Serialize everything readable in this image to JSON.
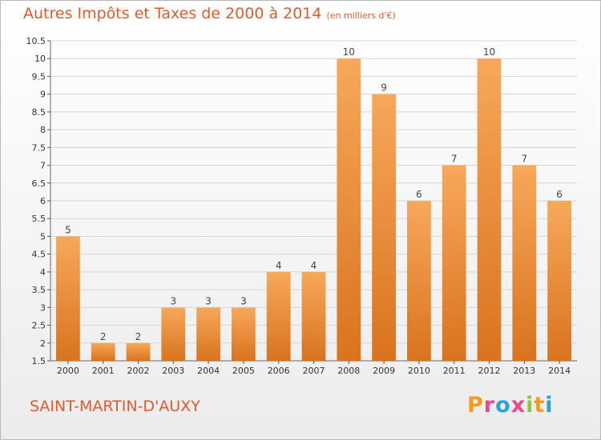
{
  "header": {
    "title": "Autres Impôts et Taxes de 2000 à 2014",
    "subtitle": "(en milliers d'€)"
  },
  "footer": {
    "city": "SAINT-MARTIN-D'AUXY",
    "logo_letters": [
      "P",
      "r",
      "o",
      "x",
      "i",
      "t",
      "i"
    ],
    "logo_colors": [
      "#f39a1f",
      "#e84b8a",
      "#2aa3db",
      "#e84b8a",
      "#8cc63f",
      "#f39a1f",
      "#2aa3db"
    ]
  },
  "colors": {
    "bar_light": "#f7a85a",
    "bar_dark": "#d9731e",
    "accent_text": "#e05a2a"
  },
  "chart_data": {
    "type": "bar",
    "title": "Autres Impôts et Taxes de 2000 à 2014",
    "subtitle": "(en milliers d'€)",
    "categories": [
      "2000",
      "2001",
      "2002",
      "2003",
      "2004",
      "2005",
      "2006",
      "2007",
      "2008",
      "2009",
      "2010",
      "2011",
      "2012",
      "2013",
      "2014"
    ],
    "values": [
      5,
      2,
      2,
      3,
      3,
      3,
      4,
      4,
      10,
      9,
      6,
      7,
      10,
      7,
      6
    ],
    "data_labels": [
      "5",
      "2",
      "2",
      "3",
      "3",
      "3",
      "4",
      "4",
      "10",
      "9",
      "6",
      "7",
      "10",
      "7",
      "6"
    ],
    "ylim": [
      1.5,
      10.5
    ],
    "yticks": [
      "1.5",
      "2",
      "2.5",
      "3",
      "3.5",
      "4",
      "4.5",
      "5",
      "5.5",
      "6",
      "6.5",
      "7",
      "7.5",
      "8",
      "8.5",
      "9",
      "9.5",
      "10",
      "10.5"
    ],
    "grid": true,
    "xlabel": "",
    "ylabel": ""
  }
}
